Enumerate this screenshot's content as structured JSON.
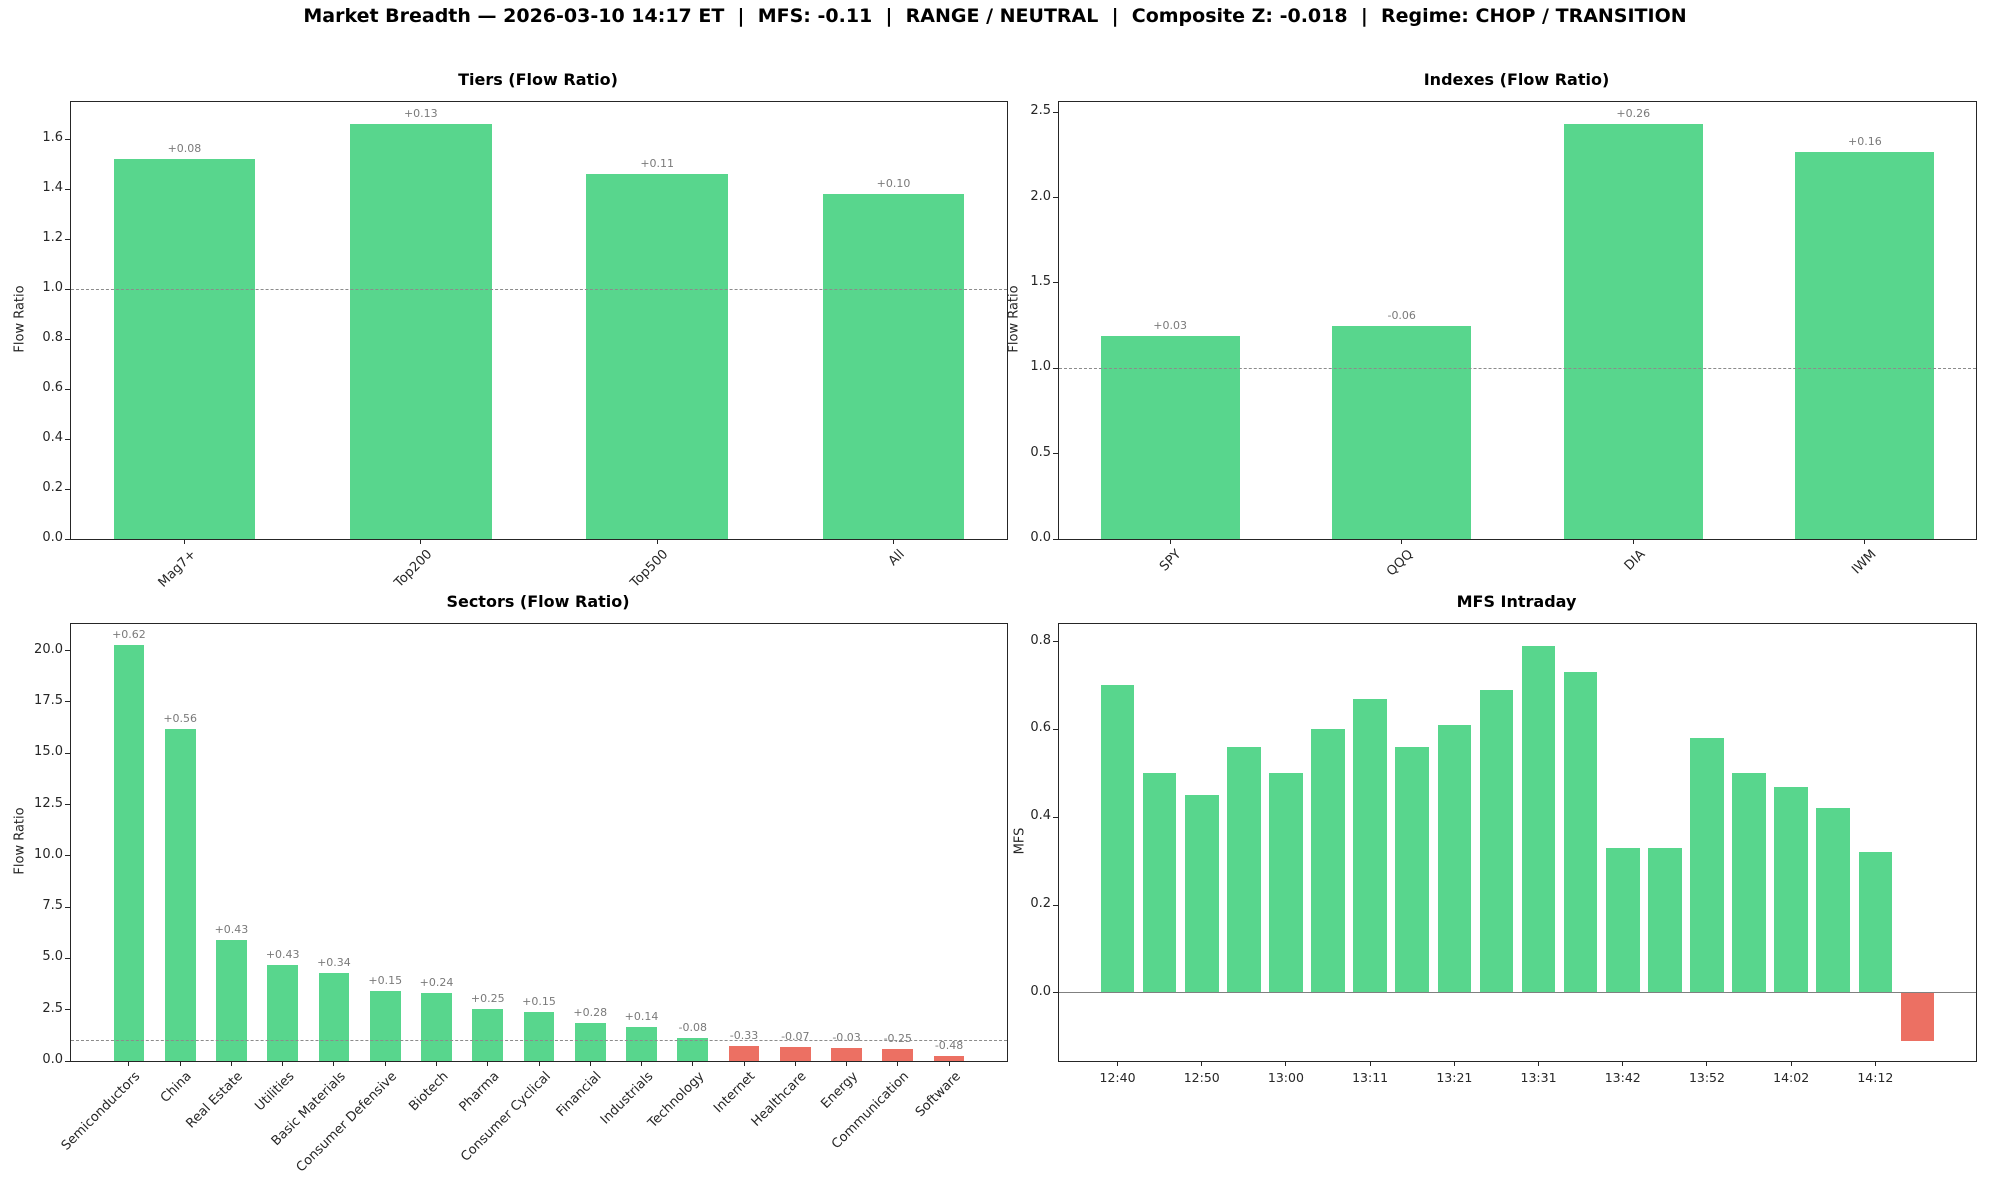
{
  "header": {
    "title": "Market Breadth — 2026-03-10 14:17 ET  |  MFS: -0.11  |  RANGE / NEUTRAL  |  Composite Z: -0.018  |  Regime: CHOP / TRANSITION",
    "timestamp": "2026-03-10 14:17 ET",
    "mfs": "-0.11",
    "state": "RANGE / NEUTRAL",
    "composite_z": "-0.018",
    "regime": "CHOP / TRANSITION"
  },
  "colors": {
    "positive_bar": "#58d68d",
    "negative_bar": "#ec7063",
    "bar_label": "#7a7a7a",
    "reference_line": "#8c8c8c",
    "zero_line": "#808080"
  },
  "chart_data": [
    {
      "id": "tiers",
      "type": "bar",
      "title": "Tiers (Flow Ratio)",
      "ylabel": "Flow Ratio",
      "categories": [
        "Mag7+",
        "Top200",
        "Top500",
        "All"
      ],
      "values": [
        1.52,
        1.66,
        1.46,
        1.38
      ],
      "bar_labels": [
        "+0.08",
        "+0.13",
        "+0.11",
        "+0.10"
      ],
      "bar_colors": [
        "pos",
        "pos",
        "pos",
        "pos"
      ],
      "ylim": [
        0,
        1.75
      ],
      "yticks": [
        0.0,
        0.2,
        0.4,
        0.6,
        0.8,
        1.0,
        1.2,
        1.4,
        1.6
      ],
      "ref_line": 1.0,
      "grid": false,
      "legend": null
    },
    {
      "id": "indexes",
      "type": "bar",
      "title": "Indexes (Flow Ratio)",
      "ylabel": "Flow Ratio",
      "categories": [
        "SPY",
        "QQQ",
        "DIA",
        "IWM"
      ],
      "values": [
        1.19,
        1.25,
        2.43,
        2.27
      ],
      "bar_labels": [
        "+0.03",
        "-0.06",
        "+0.26",
        "+0.16"
      ],
      "bar_colors": [
        "pos",
        "pos",
        "pos",
        "pos"
      ],
      "ylim": [
        0,
        2.56
      ],
      "yticks": [
        0.0,
        0.5,
        1.0,
        1.5,
        2.0,
        2.5
      ],
      "ref_line": 1.0,
      "grid": false,
      "legend": null
    },
    {
      "id": "sectors",
      "type": "bar",
      "title": "Sectors (Flow Ratio)",
      "ylabel": "Flow Ratio",
      "categories": [
        "Semiconductors",
        "China",
        "Real Estate",
        "Utilities",
        "Basic Materials",
        "Consumer Defensive",
        "Biotech",
        "Pharma",
        "Consumer Cyclical",
        "Financial",
        "Industrials",
        "Technology",
        "Internet",
        "Healthcare",
        "Energy",
        "Communication",
        "Software"
      ],
      "values": [
        20.3,
        16.2,
        5.9,
        4.7,
        4.3,
        3.4,
        3.3,
        2.55,
        2.4,
        1.85,
        1.65,
        1.1,
        0.72,
        0.7,
        0.62,
        0.57,
        0.25
      ],
      "bar_labels": [
        "+0.62",
        "+0.56",
        "+0.43",
        "+0.43",
        "+0.34",
        "+0.15",
        "+0.24",
        "+0.25",
        "+0.15",
        "+0.28",
        "+0.14",
        "-0.08",
        "-0.33",
        "-0.07",
        "-0.03",
        "-0.25",
        "-0.48"
      ],
      "bar_colors": [
        "pos",
        "pos",
        "pos",
        "pos",
        "pos",
        "pos",
        "pos",
        "pos",
        "pos",
        "pos",
        "pos",
        "pos",
        "neg",
        "neg",
        "neg",
        "neg",
        "neg"
      ],
      "ylim": [
        0,
        21.3
      ],
      "yticks": [
        0.0,
        2.5,
        5.0,
        7.5,
        10.0,
        12.5,
        15.0,
        17.5,
        20.0
      ],
      "ref_line": 1.0,
      "grid": false,
      "legend": null
    },
    {
      "id": "mfs",
      "type": "bar",
      "title": "MFS Intraday",
      "ylabel": "MFS",
      "x_labels": [
        "12:40",
        "12:50",
        "13:00",
        "13:11",
        "13:21",
        "13:31",
        "13:42",
        "13:52",
        "14:02",
        "14:12"
      ],
      "xtick_positions": [
        0,
        2,
        4,
        6,
        8,
        10,
        12,
        14,
        16,
        18
      ],
      "values": [
        0.7,
        0.5,
        0.45,
        0.56,
        0.5,
        0.6,
        0.67,
        0.56,
        0.61,
        0.69,
        0.79,
        0.73,
        0.33,
        0.33,
        0.58,
        0.5,
        0.47,
        0.42,
        0.32,
        -0.11
      ],
      "bar_colors": [
        "pos",
        "pos",
        "pos",
        "pos",
        "pos",
        "pos",
        "pos",
        "pos",
        "pos",
        "pos",
        "pos",
        "pos",
        "pos",
        "pos",
        "pos",
        "pos",
        "pos",
        "pos",
        "pos",
        "neg"
      ],
      "ylim": [
        -0.155,
        0.84
      ],
      "yticks": [
        0.0,
        0.2,
        0.4,
        0.6,
        0.8
      ],
      "zero_line": 0.0,
      "grid": false,
      "legend": null
    }
  ]
}
